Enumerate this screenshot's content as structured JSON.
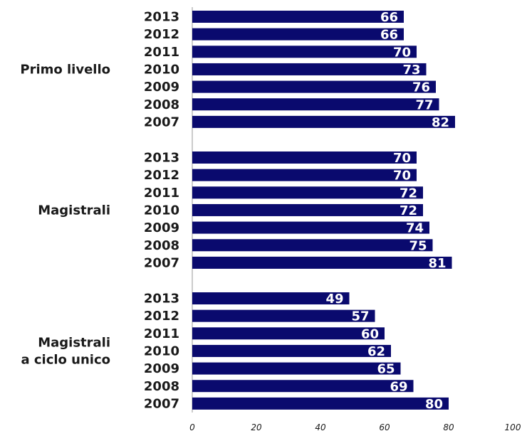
{
  "chart_data": {
    "type": "bar",
    "orientation": "horizontal",
    "bar_color": "#0a0a6e",
    "value_label_color": "#ffffff",
    "xlim": [
      0,
      100
    ],
    "x_ticks": [
      "0",
      "20",
      "40",
      "60",
      "80",
      "100"
    ],
    "groups": [
      {
        "name": "Primo livello",
        "bars": [
          {
            "year": "2013",
            "value": 66
          },
          {
            "year": "2012",
            "value": 66
          },
          {
            "year": "2011",
            "value": 70
          },
          {
            "year": "2010",
            "value": 73
          },
          {
            "year": "2009",
            "value": 76
          },
          {
            "year": "2008",
            "value": 77
          },
          {
            "year": "2007",
            "value": 82
          }
        ]
      },
      {
        "name": "Magistrali",
        "bars": [
          {
            "year": "2013",
            "value": 70
          },
          {
            "year": "2012",
            "value": 70
          },
          {
            "year": "2011",
            "value": 72
          },
          {
            "year": "2010",
            "value": 72
          },
          {
            "year": "2009",
            "value": 74
          },
          {
            "year": "2008",
            "value": 75
          },
          {
            "year": "2007",
            "value": 81
          }
        ]
      },
      {
        "name": "Magistrali\na ciclo unico",
        "bars": [
          {
            "year": "2013",
            "value": 49
          },
          {
            "year": "2012",
            "value": 57
          },
          {
            "year": "2011",
            "value": 60
          },
          {
            "year": "2010",
            "value": 62
          },
          {
            "year": "2009",
            "value": 65
          },
          {
            "year": "2008",
            "value": 69
          },
          {
            "year": "2007",
            "value": 80
          }
        ]
      }
    ]
  }
}
